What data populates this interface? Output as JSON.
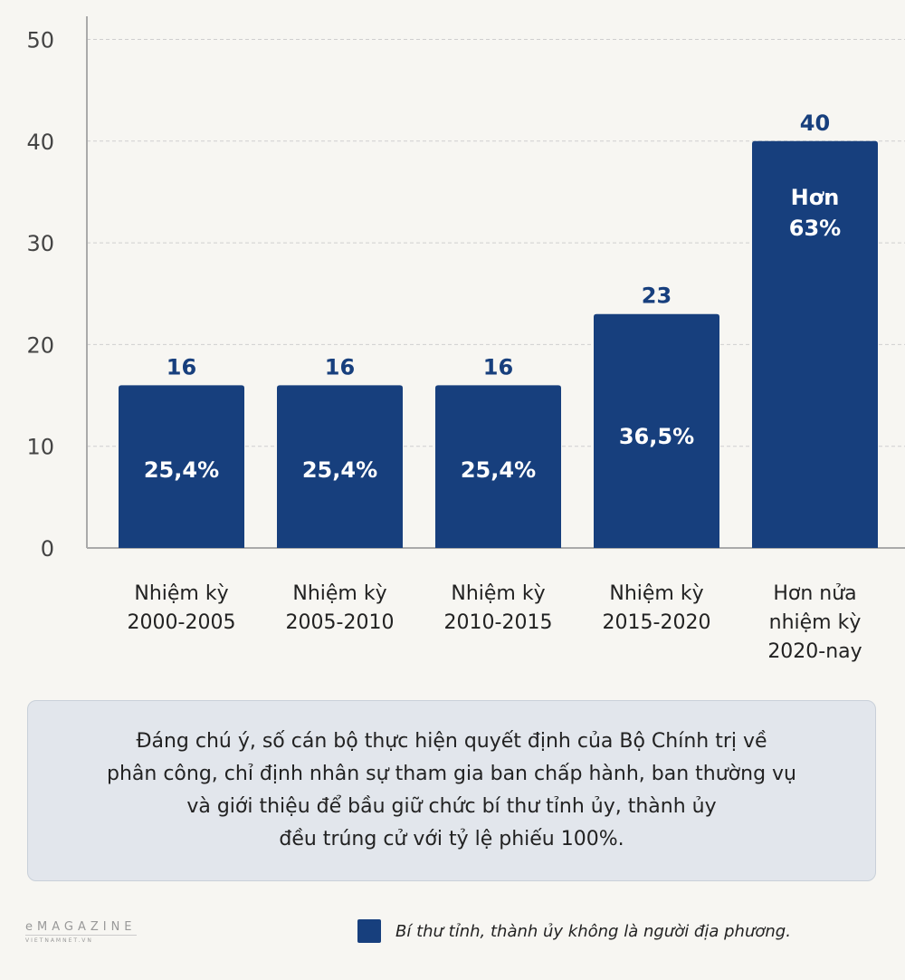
{
  "chart_data": {
    "type": "bar",
    "categories": [
      "Nhiệm kỳ\n2000-2005",
      "Nhiệm kỳ\n2005-2010",
      "Nhiệm kỳ\n2010-2015",
      "Nhiệm kỳ\n2015-2020",
      "Hơn nửa\nnhiệm kỳ\n2020-nay"
    ],
    "values": [
      16,
      16,
      16,
      23,
      40
    ],
    "value_labels": [
      "16",
      "16",
      "16",
      "23",
      "40"
    ],
    "inner_labels": [
      "25,4%",
      "25,4%",
      "25,4%",
      "36,5%",
      "Hơn\n63%"
    ],
    "ylim": [
      0,
      50
    ],
    "yticks": [
      "0",
      "10",
      "20",
      "30",
      "40",
      "50"
    ],
    "grid": true,
    "bar_color": "#173f7d",
    "legend": {
      "label": "Bí thư tỉnh, thành ủy không là người địa phương.",
      "position": "bottom-right"
    }
  },
  "note": "Đáng chú ý, số cán bộ thực hiện quyết định của Bộ Chính trị về\nphân công, chỉ định nhân sự tham gia ban chấp hành, ban thường vụ\nvà giới thiệu để bầu giữ chức bí thư tỉnh ủy, thành ủy\nđều trúng cử với tỷ lệ phiếu 100%.",
  "logo": {
    "line1": "eMAGAZINE",
    "line2": "VIETNAMNET.VN"
  }
}
